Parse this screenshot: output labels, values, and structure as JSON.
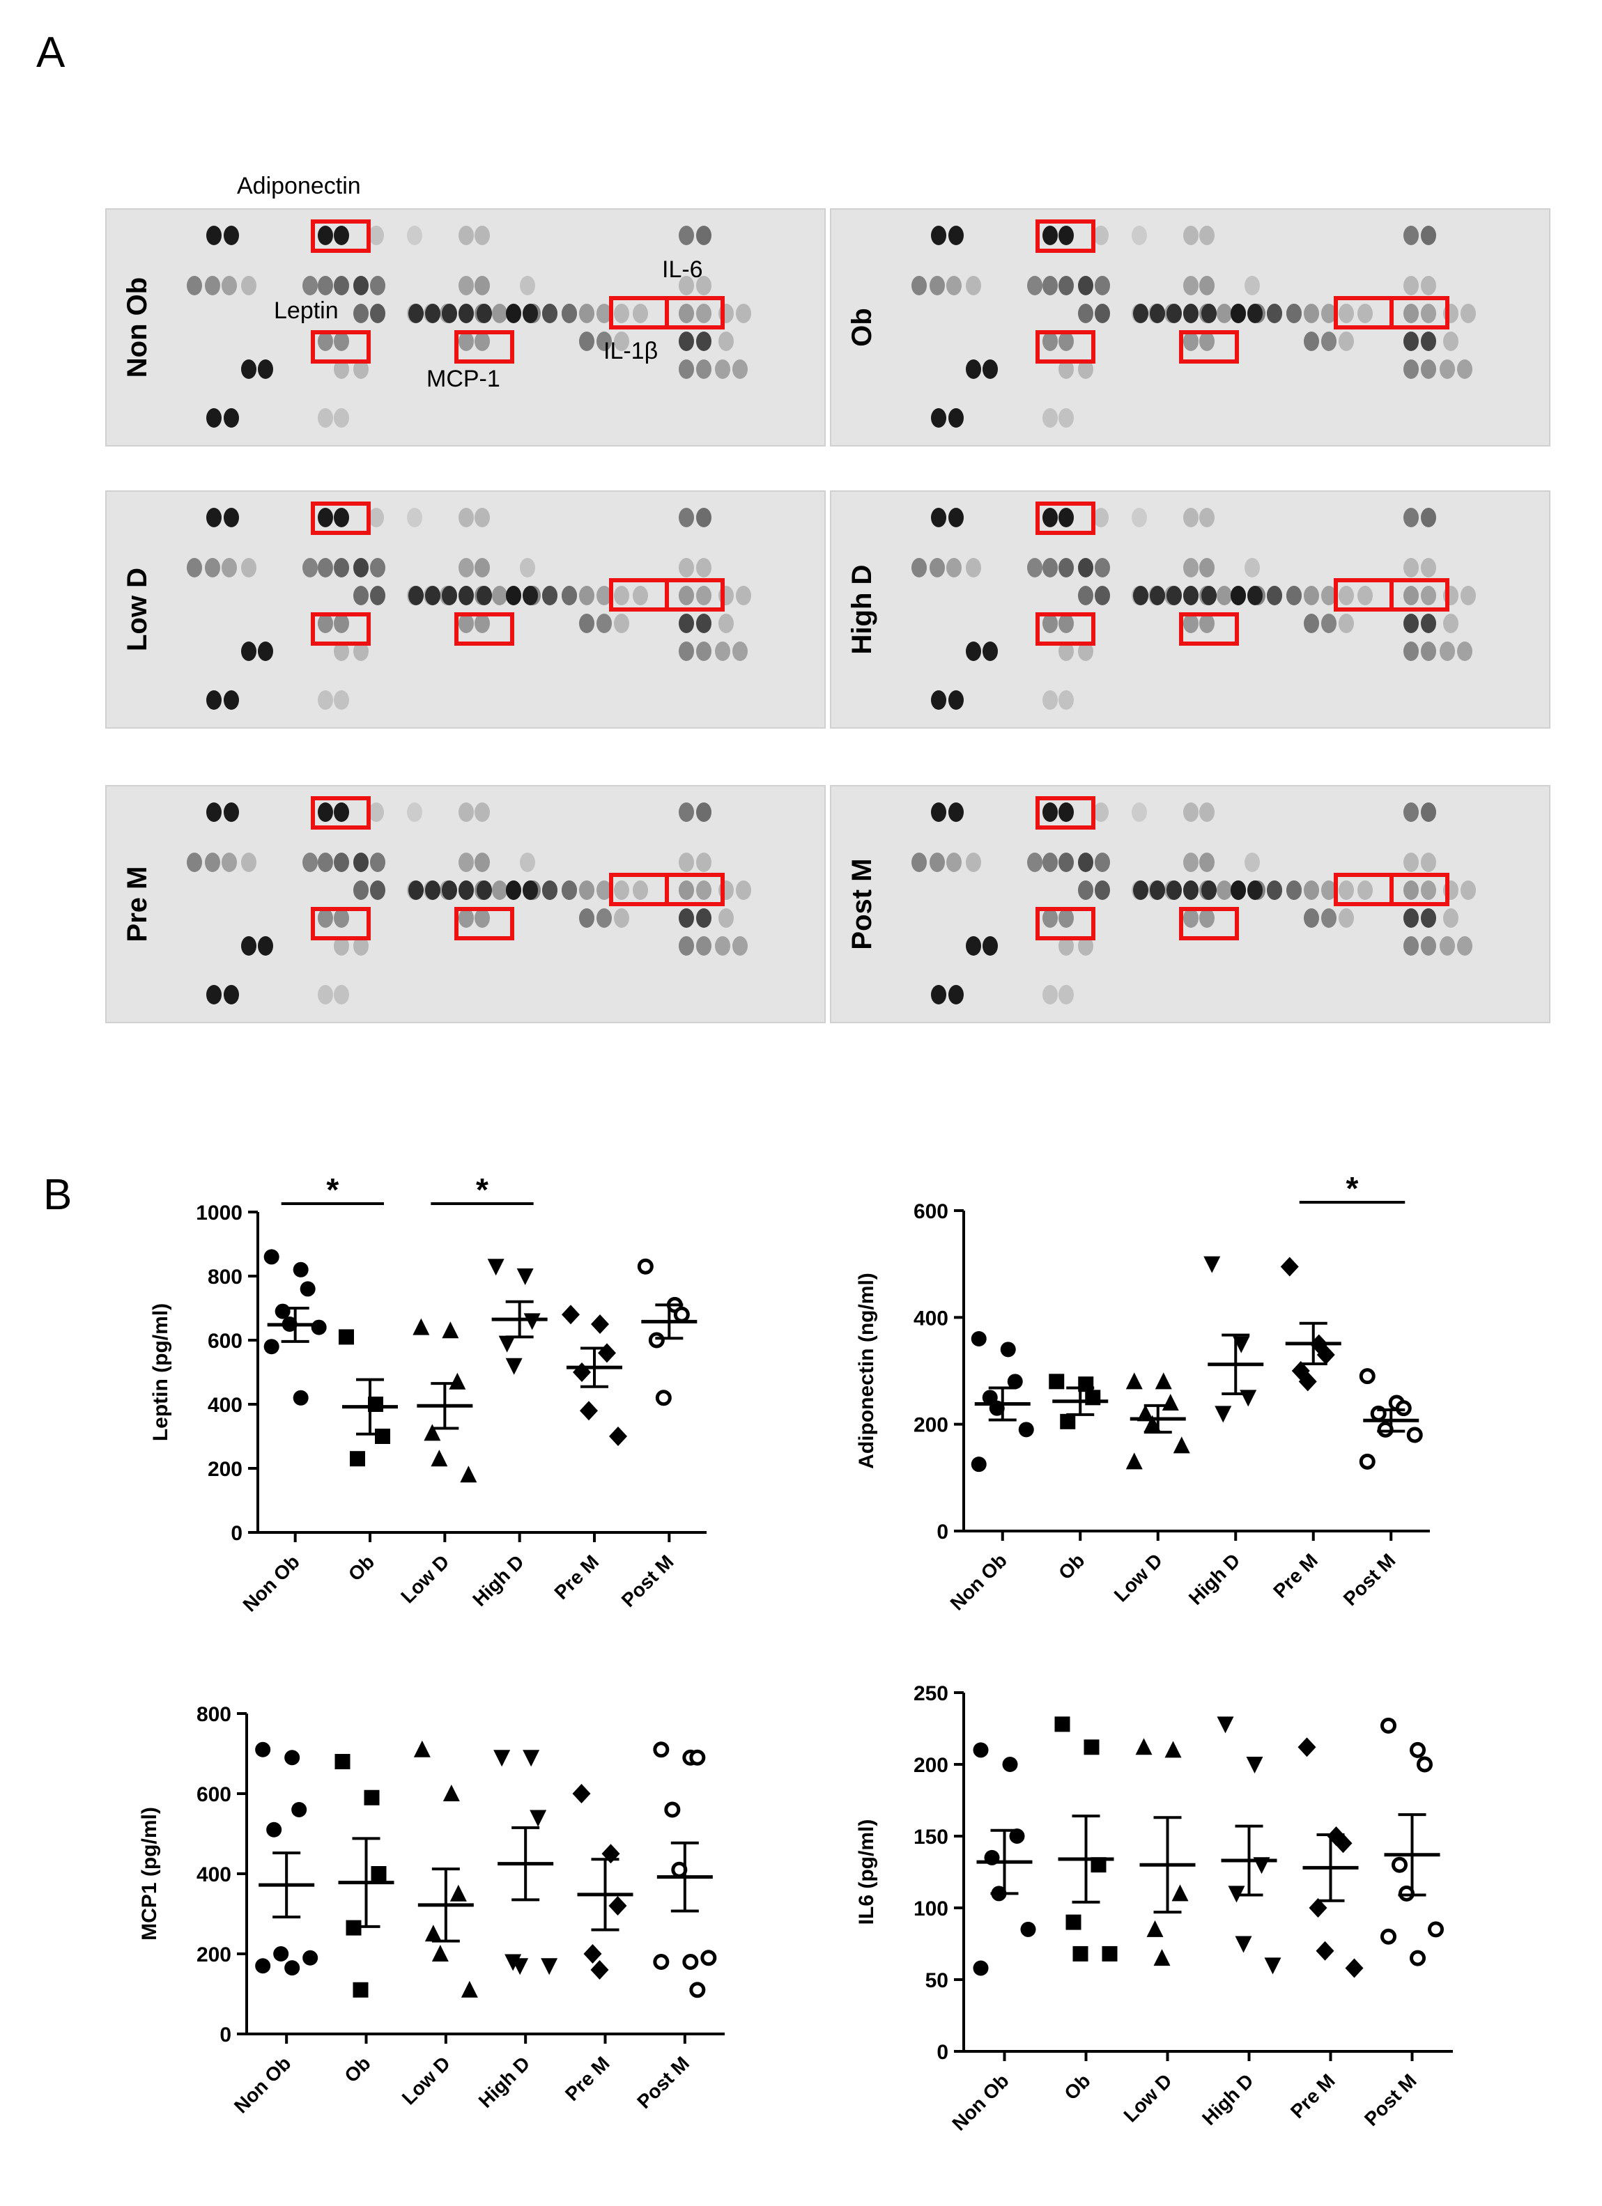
{
  "panel_a": {
    "letter": "A",
    "blots": [
      {
        "label": "Non Ob"
      },
      {
        "label": "Ob"
      },
      {
        "label": "Low D"
      },
      {
        "label": "High D"
      },
      {
        "label": "Pre M"
      },
      {
        "label": "Post M"
      }
    ],
    "annotations": {
      "adiponectin": "Adiponectin",
      "leptin": "Leptin",
      "il6": "IL-6",
      "il1b": "IL-1β",
      "mcp1": "MCP-1"
    },
    "highlight_color": "#ee1111"
  },
  "panel_b": {
    "letter": "B"
  },
  "chart_data": [
    {
      "type": "scatter",
      "ylabel": "Leptin (pg/ml)",
      "categories": [
        "Non Ob",
        "Ob",
        "Low D",
        "High D",
        "Pre M",
        "Post M"
      ],
      "ylim": [
        0,
        1000
      ],
      "yticks": [
        "0",
        "200",
        "400",
        "600",
        "800",
        "1000"
      ],
      "means": [
        648,
        392,
        395,
        665,
        515,
        658
      ],
      "sems": [
        52,
        85,
        70,
        55,
        60,
        52
      ],
      "points": [
        [
          860,
          820,
          760,
          690,
          650,
          640,
          580,
          420
        ],
        [
          610,
          400,
          300,
          230
        ],
        [
          640,
          630,
          470,
          310,
          230,
          180
        ],
        [
          830,
          800,
          660,
          590,
          520
        ],
        [
          680,
          650,
          560,
          500,
          380,
          300
        ],
        [
          830,
          710,
          680,
          600,
          420
        ]
      ],
      "markers": [
        "circle",
        "square",
        "triangle-up",
        "triangle-down",
        "diamond",
        "open-circle"
      ],
      "significance": [
        {
          "from": 0,
          "to": 1,
          "label": "*"
        },
        {
          "from": 2,
          "to": 3,
          "label": "*"
        }
      ]
    },
    {
      "type": "scatter",
      "ylabel": "Adiponectin (ng/ml)",
      "categories": [
        "Non Ob",
        "Ob",
        "Low D",
        "High D",
        "Pre M",
        "Post M"
      ],
      "ylim": [
        0,
        600
      ],
      "yticks": [
        "0",
        "200",
        "400",
        "600"
      ],
      "means": [
        238,
        243,
        210,
        312,
        351,
        207
      ],
      "sems": [
        30,
        25,
        25,
        55,
        38,
        20
      ],
      "points": [
        [
          360,
          340,
          280,
          250,
          230,
          190,
          125
        ],
        [
          280,
          275,
          250,
          205
        ],
        [
          280,
          280,
          240,
          220,
          200,
          160,
          130
        ],
        [
          500,
          350,
          250,
          220
        ],
        [
          495,
          350,
          330,
          300,
          280
        ],
        [
          290,
          240,
          230,
          220,
          190,
          180,
          130
        ]
      ],
      "markers": [
        "circle",
        "square",
        "triangle-up",
        "triangle-down",
        "diamond",
        "open-circle"
      ],
      "significance": [
        {
          "from": 4,
          "to": 5,
          "label": "*"
        }
      ]
    },
    {
      "type": "scatter",
      "ylabel": "MCP1 (pg/ml)",
      "categories": [
        "Non Ob",
        "Ob",
        "Low D",
        "High D",
        "Pre M",
        "Post M"
      ],
      "ylim": [
        0,
        800
      ],
      "yticks": [
        "0",
        "200",
        "400",
        "600",
        "800"
      ],
      "means": [
        372,
        378,
        322,
        425,
        348,
        392
      ],
      "sems": [
        80,
        110,
        90,
        90,
        88,
        85
      ],
      "points": [
        [
          710,
          690,
          560,
          510,
          200,
          190,
          170,
          165
        ],
        [
          680,
          590,
          400,
          265,
          110
        ],
        [
          710,
          600,
          350,
          250,
          200,
          110
        ],
        [
          690,
          690,
          540,
          180,
          170,
          170
        ],
        [
          600,
          450,
          320,
          200,
          160
        ],
        [
          710,
          690,
          690,
          560,
          410,
          190,
          180,
          180,
          110
        ]
      ],
      "markers": [
        "circle",
        "square",
        "triangle-up",
        "triangle-down",
        "diamond",
        "open-circle"
      ],
      "significance": []
    },
    {
      "type": "scatter",
      "ylabel": "IL6 (pg/ml)",
      "categories": [
        "Non Ob",
        "Ob",
        "Low D",
        "High D",
        "Pre M",
        "Post M"
      ],
      "ylim": [
        0,
        250
      ],
      "yticks": [
        "0",
        "50",
        "100",
        "150",
        "200",
        "250"
      ],
      "means": [
        132,
        134,
        130,
        133,
        128,
        137
      ],
      "sems": [
        22,
        30,
        33,
        24,
        23,
        28
      ],
      "points": [
        [
          210,
          200,
          150,
          135,
          110,
          85,
          58
        ],
        [
          228,
          212,
          130,
          90,
          68,
          68
        ],
        [
          212,
          210,
          110,
          85,
          65
        ],
        [
          228,
          200,
          130,
          110,
          75,
          60
        ],
        [
          212,
          150,
          145,
          100,
          70,
          58
        ],
        [
          227,
          210,
          200,
          130,
          110,
          85,
          80,
          65
        ]
      ],
      "markers": [
        "circle",
        "square",
        "triangle-up",
        "triangle-down",
        "diamond",
        "open-circle"
      ],
      "significance": []
    }
  ]
}
